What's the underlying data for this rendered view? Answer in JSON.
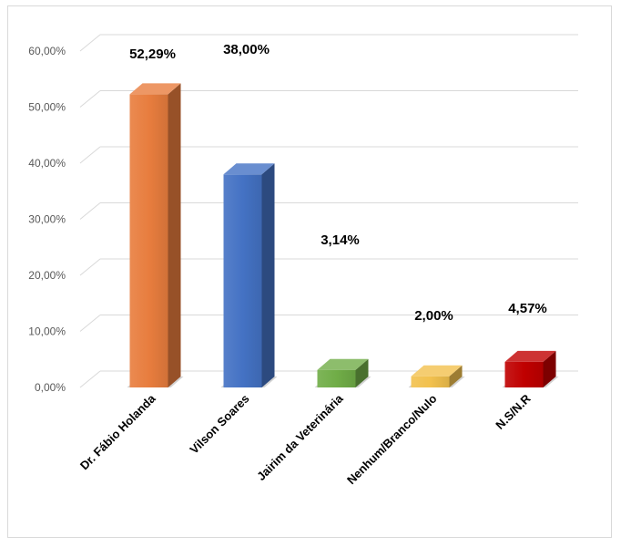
{
  "chart_data": {
    "type": "bar",
    "title": "",
    "xlabel": "",
    "ylabel": "",
    "categories": [
      "Dr. Fábio Holanda",
      "Vilson Soares",
      "Jairim da Veterinária",
      "Nenhum/Branco/Nulo",
      "N.S/N.R"
    ],
    "values": [
      52.29,
      38.0,
      3.14,
      2.0,
      4.57
    ],
    "data_labels": [
      "52,29%",
      "38,00%",
      "3,14%",
      "2,00%",
      "4,57%"
    ],
    "ylim": [
      0,
      60
    ],
    "y_ticks": [
      "0,00%",
      "10,00%",
      "20,00%",
      "30,00%",
      "40,00%",
      "50,00%",
      "60,00%"
    ],
    "grid": true,
    "legend": "none",
    "style": "3d-column",
    "colors": [
      "#e87d3e",
      "#4472c4",
      "#70ad47",
      "#f2c14e",
      "#c00000"
    ]
  }
}
